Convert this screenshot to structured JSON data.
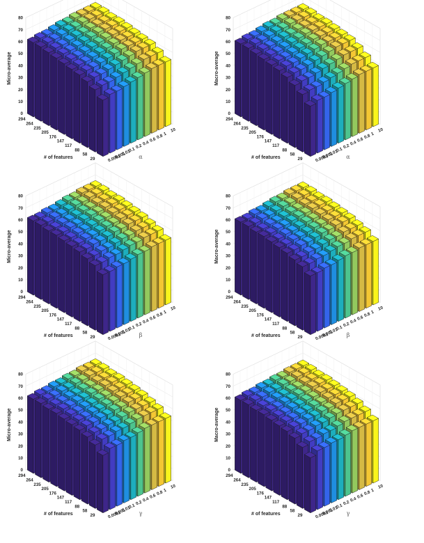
{
  "colormap": [
    "#3e268a",
    "#4433b3",
    "#3f4fe0",
    "#2f6ef0",
    "#1f8ee0",
    "#16a8c9",
    "#2bbba6",
    "#5ec882",
    "#93c95e",
    "#c9bd48",
    "#eeb43c",
    "#f7d02e",
    "#f9f51c"
  ],
  "chart_data": [
    {
      "type": "bar3d",
      "zlabel": "Micro-average",
      "xlabel": "# of features",
      "ylabel": "α",
      "features": [
        "294",
        "264",
        "235",
        "205",
        "176",
        "147",
        "117",
        "88",
        "58",
        "29"
      ],
      "params": [
        "0.0001",
        "0.001",
        "0.01",
        "0.1",
        "0.2",
        "0.4",
        "0.6",
        "0.8",
        "1",
        "10"
      ],
      "zticks": [
        "0",
        "10",
        "20",
        "30",
        "40",
        "50",
        "60",
        "70",
        "80"
      ],
      "zlim": [
        0,
        80
      ],
      "values": [
        [
          62,
          63,
          63,
          64,
          65,
          65,
          66,
          66,
          66,
          66
        ],
        [
          62,
          63,
          63,
          64,
          65,
          65,
          66,
          66,
          66,
          66
        ],
        [
          61,
          62,
          62,
          63,
          64,
          64,
          65,
          65,
          65,
          65
        ],
        [
          60,
          61,
          61,
          62,
          63,
          64,
          65,
          65,
          65,
          65
        ],
        [
          59,
          60,
          60,
          61,
          62,
          63,
          64,
          64,
          64,
          64
        ],
        [
          58,
          59,
          59,
          60,
          61,
          62,
          63,
          63,
          63,
          63
        ],
        [
          57,
          58,
          58,
          59,
          60,
          61,
          62,
          62,
          62,
          62
        ],
        [
          55,
          56,
          56,
          57,
          58,
          59,
          60,
          61,
          61,
          61
        ],
        [
          52,
          53,
          53,
          54,
          55,
          56,
          57,
          58,
          58,
          58
        ],
        [
          47,
          49,
          49,
          50,
          51,
          52,
          53,
          54,
          54,
          54
        ]
      ]
    },
    {
      "type": "bar3d",
      "zlabel": "Macro-average",
      "xlabel": "# of features",
      "ylabel": "α",
      "features": [
        "294",
        "264",
        "235",
        "205",
        "176",
        "147",
        "117",
        "88",
        "58",
        "29"
      ],
      "params": [
        "0.0001",
        "0.001",
        "0.01",
        "0.1",
        "0.2",
        "0.4",
        "0.6",
        "0.8",
        "1",
        "10"
      ],
      "zticks": [
        "0",
        "10",
        "20",
        "30",
        "40",
        "50",
        "60",
        "70",
        "80"
      ],
      "zlim": [
        0,
        80
      ],
      "values": [
        [
          61,
          62,
          62,
          63,
          64,
          64,
          65,
          65,
          65,
          65
        ],
        [
          61,
          62,
          62,
          63,
          64,
          64,
          65,
          65,
          65,
          65
        ],
        [
          60,
          61,
          61,
          62,
          63,
          63,
          64,
          64,
          64,
          64
        ],
        [
          59,
          60,
          60,
          61,
          62,
          63,
          64,
          64,
          64,
          64
        ],
        [
          58,
          59,
          59,
          60,
          61,
          62,
          63,
          63,
          63,
          63
        ],
        [
          57,
          58,
          58,
          59,
          60,
          61,
          62,
          62,
          62,
          62
        ],
        [
          55,
          56,
          56,
          57,
          58,
          59,
          60,
          61,
          61,
          61
        ],
        [
          52,
          53,
          53,
          54,
          55,
          56,
          57,
          58,
          58,
          58
        ],
        [
          48,
          49,
          49,
          50,
          51,
          52,
          53,
          54,
          54,
          54
        ],
        [
          42,
          44,
          44,
          45,
          46,
          47,
          48,
          49,
          49,
          49
        ]
      ]
    },
    {
      "type": "bar3d",
      "zlabel": "Micro-average",
      "xlabel": "# of features",
      "ylabel": "β",
      "features": [
        "294",
        "264",
        "235",
        "205",
        "176",
        "147",
        "117",
        "88",
        "58",
        "29"
      ],
      "params": [
        "0.0001",
        "0.001",
        "0.01",
        "0.1",
        "0.2",
        "0.4",
        "0.6",
        "0.8",
        "1",
        "10"
      ],
      "zticks": [
        "0",
        "10",
        "20",
        "30",
        "40",
        "50",
        "60",
        "70",
        "80"
      ],
      "zlim": [
        0,
        80
      ],
      "values": [
        [
          62,
          62,
          63,
          63,
          64,
          65,
          65,
          66,
          66,
          66
        ],
        [
          62,
          62,
          63,
          63,
          64,
          65,
          65,
          66,
          66,
          66
        ],
        [
          61,
          61,
          62,
          62,
          63,
          64,
          64,
          65,
          65,
          65
        ],
        [
          61,
          61,
          62,
          62,
          63,
          64,
          64,
          65,
          65,
          65
        ],
        [
          60,
          60,
          61,
          61,
          62,
          63,
          63,
          64,
          64,
          64
        ],
        [
          59,
          59,
          60,
          60,
          61,
          62,
          62,
          63,
          63,
          63
        ],
        [
          58,
          58,
          59,
          59,
          60,
          61,
          61,
          62,
          62,
          62
        ],
        [
          56,
          56,
          57,
          57,
          58,
          59,
          59,
          60,
          60,
          60
        ],
        [
          54,
          54,
          55,
          55,
          56,
          57,
          57,
          58,
          58,
          58
        ],
        [
          50,
          50,
          51,
          51,
          52,
          53,
          53,
          54,
          54,
          54
        ]
      ]
    },
    {
      "type": "bar3d",
      "zlabel": "Macro-average",
      "xlabel": "# of features",
      "ylabel": "β",
      "features": [
        "294",
        "264",
        "235",
        "205",
        "176",
        "147",
        "117",
        "88",
        "58",
        "29"
      ],
      "params": [
        "0.0001",
        "0.001",
        "0.01",
        "0.1",
        "0.2",
        "0.4",
        "0.6",
        "0.8",
        "1",
        "10"
      ],
      "zticks": [
        "0",
        "10",
        "20",
        "30",
        "40",
        "50",
        "60",
        "70",
        "80"
      ],
      "zlim": [
        0,
        80
      ],
      "values": [
        [
          61,
          61,
          62,
          62,
          63,
          64,
          64,
          65,
          65,
          65
        ],
        [
          61,
          61,
          62,
          62,
          63,
          64,
          64,
          65,
          65,
          65
        ],
        [
          60,
          60,
          61,
          61,
          62,
          63,
          63,
          64,
          64,
          64
        ],
        [
          60,
          60,
          61,
          61,
          62,
          63,
          63,
          64,
          64,
          64
        ],
        [
          59,
          59,
          60,
          60,
          61,
          62,
          62,
          63,
          63,
          63
        ],
        [
          58,
          58,
          59,
          59,
          60,
          61,
          61,
          62,
          62,
          62
        ],
        [
          57,
          57,
          58,
          58,
          59,
          60,
          60,
          61,
          61,
          61
        ],
        [
          55,
          55,
          56,
          56,
          57,
          58,
          58,
          59,
          59,
          59
        ],
        [
          53,
          53,
          54,
          54,
          55,
          56,
          56,
          57,
          57,
          57
        ],
        [
          49,
          49,
          50,
          50,
          51,
          52,
          52,
          53,
          53,
          53
        ]
      ]
    },
    {
      "type": "bar3d",
      "zlabel": "Micro-average",
      "xlabel": "# of features",
      "ylabel": "γ",
      "features": [
        "294",
        "264",
        "235",
        "205",
        "176",
        "147",
        "117",
        "88",
        "58",
        "29"
      ],
      "params": [
        "0.0001",
        "0.001",
        "0.01",
        "0.1",
        "0.2",
        "0.4",
        "0.6",
        "0.8",
        "1",
        "10"
      ],
      "zticks": [
        "0",
        "10",
        "20",
        "30",
        "40",
        "50",
        "60",
        "70",
        "80"
      ],
      "zlim": [
        0,
        80
      ],
      "values": [
        [
          62,
          63,
          63,
          64,
          64,
          65,
          65,
          66,
          66,
          66
        ],
        [
          62,
          63,
          63,
          64,
          64,
          65,
          65,
          66,
          66,
          66
        ],
        [
          61,
          62,
          62,
          63,
          63,
          64,
          64,
          65,
          65,
          65
        ],
        [
          61,
          62,
          62,
          63,
          63,
          64,
          64,
          65,
          65,
          65
        ],
        [
          60,
          61,
          61,
          62,
          62,
          63,
          63,
          64,
          64,
          64
        ],
        [
          59,
          60,
          60,
          61,
          61,
          62,
          62,
          63,
          63,
          63
        ],
        [
          58,
          59,
          59,
          60,
          60,
          61,
          61,
          62,
          62,
          62
        ],
        [
          56,
          57,
          57,
          58,
          58,
          59,
          60,
          60,
          60,
          60
        ],
        [
          53,
          55,
          55,
          56,
          56,
          57,
          58,
          58,
          58,
          58
        ],
        [
          48,
          51,
          51,
          52,
          52,
          53,
          54,
          54,
          54,
          54
        ]
      ]
    },
    {
      "type": "bar3d",
      "zlabel": "Macro-average",
      "xlabel": "# of features",
      "ylabel": "γ",
      "features": [
        "294",
        "264",
        "235",
        "205",
        "176",
        "147",
        "117",
        "88",
        "58",
        "29"
      ],
      "params": [
        "0.0001",
        "0.001",
        "0.01",
        "0.1",
        "0.2",
        "0.4",
        "0.6",
        "0.8",
        "1",
        "10"
      ],
      "zticks": [
        "0",
        "10",
        "20",
        "30",
        "40",
        "50",
        "60",
        "70",
        "80"
      ],
      "zlim": [
        0,
        80
      ],
      "values": [
        [
          61,
          62,
          62,
          63,
          63,
          64,
          64,
          65,
          65,
          65
        ],
        [
          61,
          62,
          62,
          63,
          63,
          64,
          64,
          65,
          65,
          65
        ],
        [
          60,
          61,
          61,
          62,
          62,
          63,
          63,
          64,
          64,
          64
        ],
        [
          60,
          61,
          61,
          62,
          62,
          63,
          63,
          64,
          64,
          64
        ],
        [
          59,
          60,
          60,
          61,
          61,
          62,
          62,
          63,
          63,
          63
        ],
        [
          58,
          59,
          59,
          60,
          60,
          61,
          61,
          62,
          62,
          62
        ],
        [
          57,
          58,
          58,
          59,
          59,
          60,
          60,
          61,
          61,
          61
        ],
        [
          55,
          56,
          56,
          57,
          57,
          58,
          59,
          59,
          59,
          59
        ],
        [
          51,
          53,
          53,
          54,
          54,
          55,
          56,
          56,
          56,
          56
        ],
        [
          46,
          49,
          49,
          50,
          50,
          51,
          52,
          52,
          52,
          52
        ]
      ]
    }
  ]
}
